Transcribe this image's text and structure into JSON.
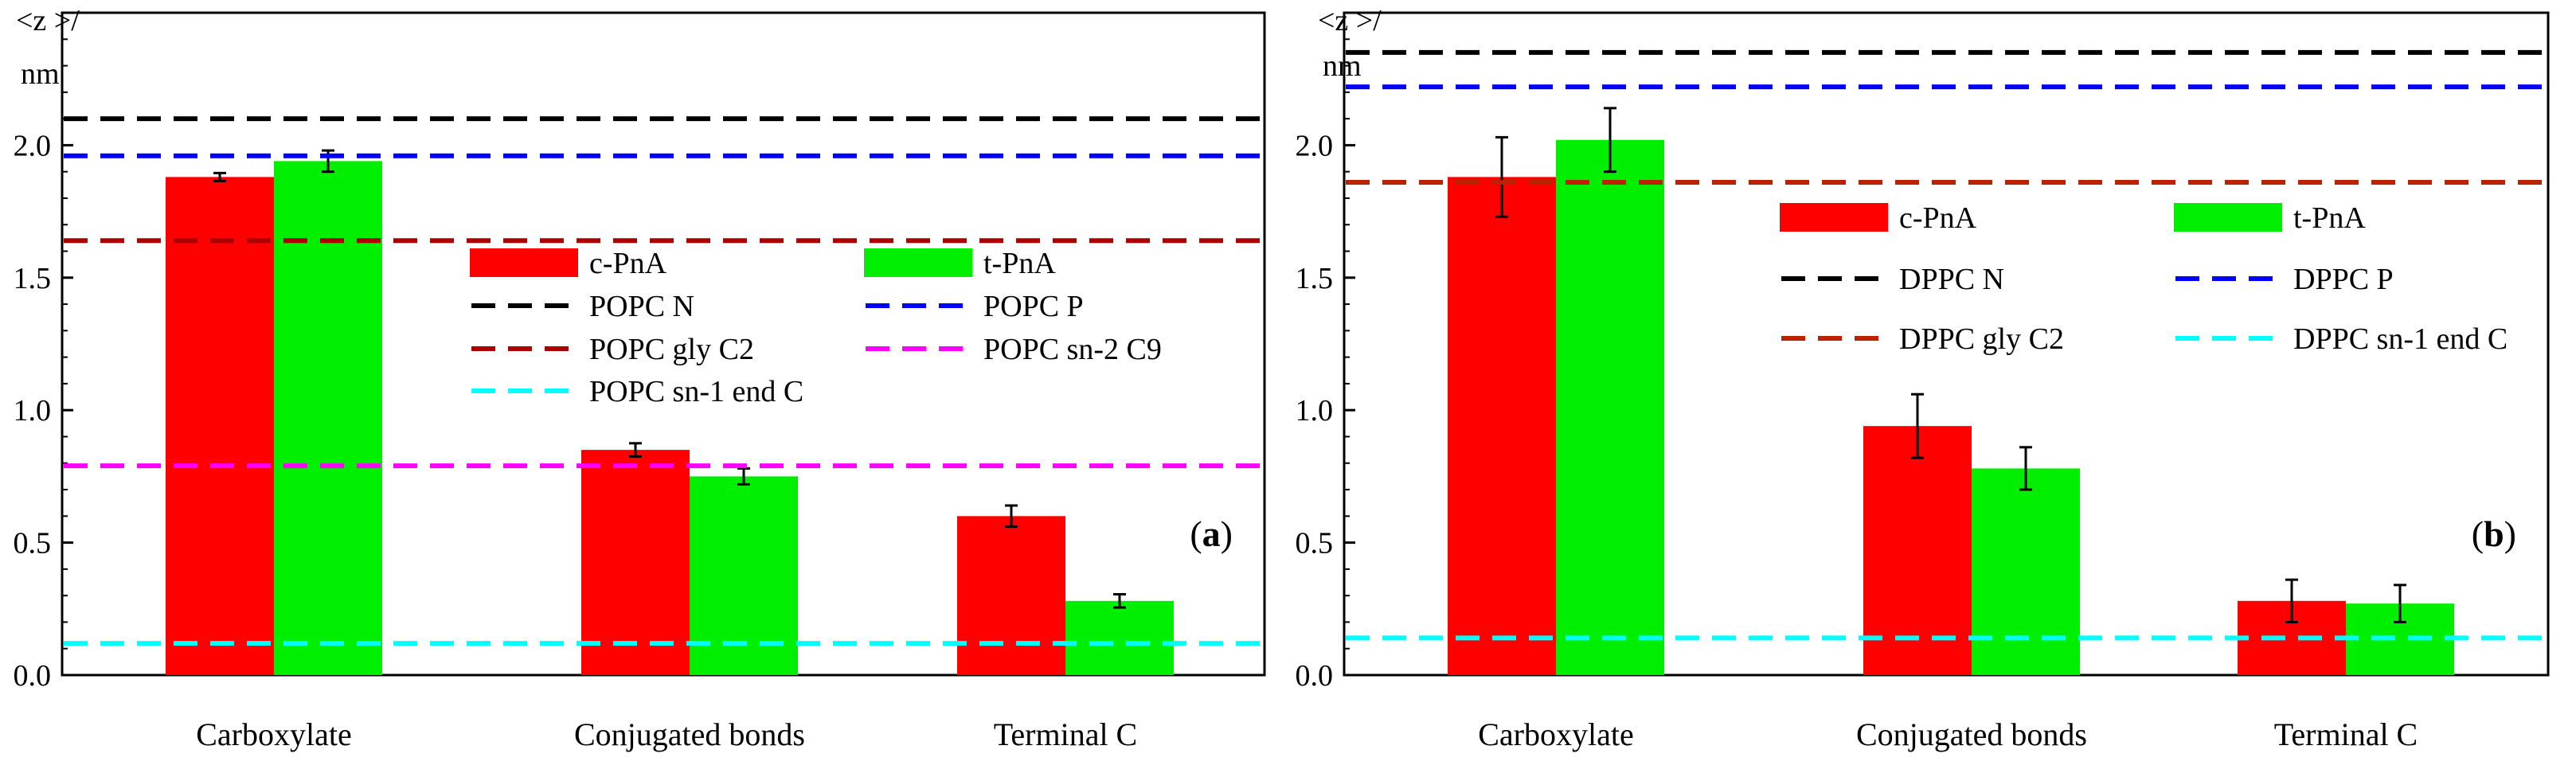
{
  "chart_data": [
    {
      "type": "bar",
      "panel_label": "a",
      "ylabel_lines": [
        "<z >/",
        "nm"
      ],
      "ylim": [
        0,
        2.5
      ],
      "yticks": [
        "0.0",
        "0.5",
        "1.0",
        "1.5",
        "2.0"
      ],
      "categories": [
        "Carboxylate",
        "Conjugated bonds",
        "Terminal C"
      ],
      "series": [
        {
          "name": "c-PnA",
          "color": "#ff0000",
          "values": [
            1.88,
            0.85,
            0.6
          ],
          "errors": [
            0.015,
            0.025,
            0.04
          ]
        },
        {
          "name": "t-PnA",
          "color": "#00ee00",
          "values": [
            1.94,
            0.75,
            0.28
          ],
          "errors": [
            0.04,
            0.03,
            0.025
          ]
        }
      ],
      "reference_lines": [
        {
          "name": "POPC N",
          "color": "#000000",
          "value": 2.1
        },
        {
          "name": "POPC P",
          "color": "#0000ff",
          "value": 1.96
        },
        {
          "name": "POPC gly C2",
          "color": "#aa0000",
          "value": 1.64
        },
        {
          "name": "POPC sn-2 C9",
          "color": "#ff00ff",
          "value": 0.79
        },
        {
          "name": "POPC sn-1 end C",
          "color": "#00ffff",
          "value": 0.12
        }
      ],
      "legend": [
        {
          "label": "c-PnA",
          "kind": "bar",
          "color": "#ff0000"
        },
        {
          "label": "t-PnA",
          "kind": "bar",
          "color": "#00ee00"
        },
        {
          "label": "POPC N",
          "kind": "line",
          "color": "#000000"
        },
        {
          "label": "POPC P",
          "kind": "line",
          "color": "#0000ff"
        },
        {
          "label": "POPC gly C2",
          "kind": "line",
          "color": "#aa0000"
        },
        {
          "label": "POPC sn-2 C9",
          "kind": "line",
          "color": "#ff00ff"
        },
        {
          "label": "POPC sn-1 end C",
          "kind": "line",
          "color": "#00ffff"
        }
      ]
    },
    {
      "type": "bar",
      "panel_label": "b",
      "ylabel_lines": [
        "<z >/",
        "nm"
      ],
      "ylim": [
        0,
        2.5
      ],
      "yticks": [
        "0.0",
        "0.5",
        "1.0",
        "1.5",
        "2.0"
      ],
      "categories": [
        "Carboxylate",
        "Conjugated bonds",
        "Terminal C"
      ],
      "series": [
        {
          "name": "c-PnA",
          "color": "#ff0000",
          "values": [
            1.88,
            0.94,
            0.28
          ],
          "errors": [
            0.15,
            0.12,
            0.08
          ]
        },
        {
          "name": "t-PnA",
          "color": "#00ee00",
          "values": [
            2.02,
            0.78,
            0.27
          ],
          "errors": [
            0.12,
            0.08,
            0.07
          ]
        }
      ],
      "reference_lines": [
        {
          "name": "DPPC N",
          "color": "#000000",
          "value": 2.35
        },
        {
          "name": "DPPC P",
          "color": "#0000ff",
          "value": 2.22
        },
        {
          "name": "DPPC gly C2",
          "color": "#bb2200",
          "value": 1.86
        },
        {
          "name": "DPPC sn-1 end C",
          "color": "#00ffff",
          "value": 0.14
        }
      ],
      "legend": [
        {
          "label": "c-PnA",
          "kind": "bar",
          "color": "#ff0000"
        },
        {
          "label": "t-PnA",
          "kind": "bar",
          "color": "#00ee00"
        },
        {
          "label": "DPPC N",
          "kind": "line",
          "color": "#000000"
        },
        {
          "label": "DPPC P",
          "kind": "line",
          "color": "#0000ff"
        },
        {
          "label": "DPPC gly C2",
          "kind": "line",
          "color": "#bb2200"
        },
        {
          "label": "DPPC sn-1 end C",
          "kind": "line",
          "color": "#00ffff"
        }
      ]
    }
  ]
}
